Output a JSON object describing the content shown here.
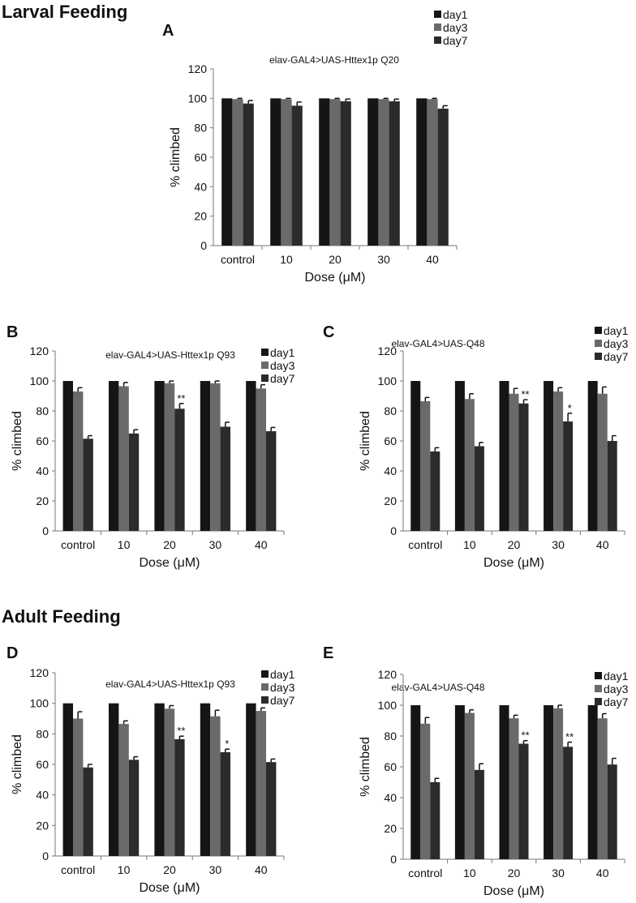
{
  "sections": {
    "larval": "Larval Feeding",
    "adult": "Adult Feeding"
  },
  "colors": {
    "day1": "#151515",
    "day3": "#6a6a6a",
    "day7": "#2b2b2b"
  },
  "chart_data": [
    {
      "type": "bar",
      "panel": "A",
      "title": "elav-GAL4>UAS-Httex1p Q20",
      "xlabel": "Dose (μM)",
      "ylabel": "% climbed",
      "ylim": [
        0,
        120
      ],
      "yticks": [
        0,
        20,
        40,
        60,
        80,
        100,
        120
      ],
      "legend": "top-right",
      "categories": [
        "control",
        "10",
        "20",
        "30",
        "40"
      ],
      "series": [
        {
          "name": "day1",
          "values": [
            100,
            100,
            100,
            100,
            100
          ],
          "err": [
            0,
            0,
            0,
            0,
            0
          ]
        },
        {
          "name": "day3",
          "values": [
            99.5,
            99.5,
            99.5,
            99.5,
            99.5
          ],
          "err": [
            0.5,
            0.5,
            0.5,
            0.5,
            0.5
          ]
        },
        {
          "name": "day7",
          "values": [
            96.5,
            95,
            98,
            98,
            93
          ],
          "err": [
            2,
            2.5,
            1.5,
            1.5,
            2
          ]
        }
      ],
      "annotations": []
    },
    {
      "type": "bar",
      "panel": "B",
      "title": "elav-GAL4>UAS-Httex1p Q93",
      "xlabel": "Dose (μM)",
      "ylabel": "% climbed",
      "ylim": [
        0,
        120
      ],
      "yticks": [
        0,
        20,
        40,
        60,
        80,
        100,
        120
      ],
      "legend": "top-right",
      "categories": [
        "control",
        "10",
        "20",
        "30",
        "40"
      ],
      "series": [
        {
          "name": "day1",
          "values": [
            100,
            100,
            100,
            100,
            100
          ],
          "err": [
            0,
            0,
            0,
            0,
            0
          ]
        },
        {
          "name": "day3",
          "values": [
            93,
            96.5,
            98.5,
            98.5,
            95
          ],
          "err": [
            2.5,
            2.5,
            1.5,
            1.5,
            2.5
          ]
        },
        {
          "name": "day7",
          "values": [
            61.5,
            65,
            81.5,
            69.5,
            66.5
          ],
          "err": [
            2,
            2.5,
            3.5,
            3,
            2.5
          ]
        }
      ],
      "annotations": [
        {
          "category": "20",
          "series": "day7",
          "text": "**"
        }
      ]
    },
    {
      "type": "bar",
      "panel": "C",
      "title": "elav-GAL4>UAS-Q48",
      "xlabel": "Dose (μM)",
      "ylabel": "% climbed",
      "ylim": [
        0,
        120
      ],
      "yticks": [
        0,
        20,
        40,
        60,
        80,
        100,
        120
      ],
      "legend": "top-right",
      "categories": [
        "control",
        "10",
        "20",
        "30",
        "40"
      ],
      "series": [
        {
          "name": "day1",
          "values": [
            100,
            100,
            100,
            100,
            100
          ],
          "err": [
            0,
            0,
            0,
            0,
            0
          ]
        },
        {
          "name": "day3",
          "values": [
            86.5,
            88,
            91.5,
            93,
            91.5
          ],
          "err": [
            2.5,
            3.5,
            3.5,
            2.5,
            4.5
          ]
        },
        {
          "name": "day7",
          "values": [
            53,
            56.5,
            85,
            73,
            60
          ],
          "err": [
            2.5,
            2.5,
            2.5,
            5.5,
            3.5
          ]
        }
      ],
      "annotations": [
        {
          "category": "20",
          "series": "day7",
          "text": "**"
        },
        {
          "category": "30",
          "series": "day7",
          "text": "*"
        }
      ]
    },
    {
      "type": "bar",
      "panel": "D",
      "title": "elav-GAL4>UAS-Httex1p Q93",
      "xlabel": "Dose (μM)",
      "ylabel": "% climbed",
      "ylim": [
        0,
        120
      ],
      "yticks": [
        0,
        20,
        40,
        60,
        80,
        100,
        120
      ],
      "legend": "top-right",
      "categories": [
        "control",
        "10",
        "20",
        "30",
        "40"
      ],
      "series": [
        {
          "name": "day1",
          "values": [
            100,
            100,
            100,
            100,
            100
          ],
          "err": [
            0,
            0,
            0,
            0,
            0
          ]
        },
        {
          "name": "day3",
          "values": [
            90,
            86.5,
            96.5,
            91.5,
            95
          ],
          "err": [
            4.5,
            2,
            2,
            4,
            2
          ]
        },
        {
          "name": "day7",
          "values": [
            58,
            63,
            76.5,
            68,
            61.5
          ],
          "err": [
            2,
            2,
            2,
            2,
            2
          ]
        }
      ],
      "annotations": [
        {
          "category": "20",
          "series": "day7",
          "text": "**"
        },
        {
          "category": "30",
          "series": "day7",
          "text": "*"
        }
      ]
    },
    {
      "type": "bar",
      "panel": "E",
      "title": "elav-GAL4>UAS-Q48",
      "xlabel": "Dose (μM)",
      "ylabel": "% climbed",
      "ylim": [
        0,
        120
      ],
      "yticks": [
        0,
        20,
        40,
        60,
        80,
        100,
        120
      ],
      "legend": "top-right",
      "categories": [
        "control",
        "10",
        "20",
        "30",
        "40"
      ],
      "series": [
        {
          "name": "day1",
          "values": [
            100,
            100,
            100,
            100,
            100
          ],
          "err": [
            0,
            0,
            0,
            0,
            0
          ]
        },
        {
          "name": "day3",
          "values": [
            88,
            95,
            91.5,
            98,
            91.5
          ],
          "err": [
            4,
            2,
            2,
            2,
            3
          ]
        },
        {
          "name": "day7",
          "values": [
            50,
            58,
            75,
            73,
            61.5
          ],
          "err": [
            2.5,
            4,
            2,
            3,
            4
          ]
        }
      ],
      "annotations": [
        {
          "category": "20",
          "series": "day7",
          "text": "**"
        },
        {
          "category": "30",
          "series": "day7",
          "text": "**"
        }
      ]
    }
  ]
}
